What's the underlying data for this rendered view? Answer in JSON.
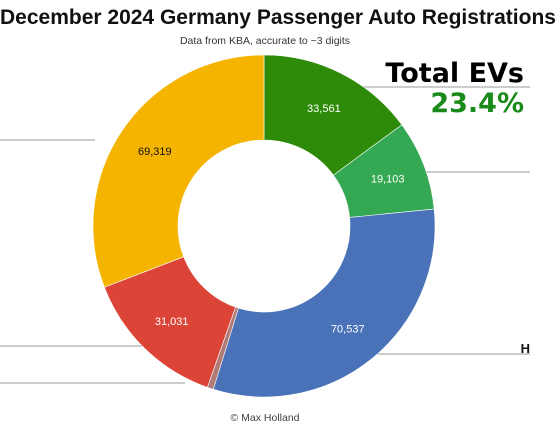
{
  "chart_data": {
    "type": "pie",
    "title": "December 2024 Germany Passenger Auto Registrations",
    "subtitle": "Data from KBA, accurate to ~3 digits",
    "donut": true,
    "slices": [
      {
        "value": 33561,
        "label": "33,561",
        "color": "#2e8b0a"
      },
      {
        "value": 19103,
        "label": "19,103",
        "color": "#34a853"
      },
      {
        "value": 70537,
        "label": "70,537",
        "color": "#4a72b8"
      },
      {
        "value": 1300,
        "label": "",
        "color": "#b07a77"
      },
      {
        "value": 31031,
        "label": "31,031",
        "color": "#dc4437"
      },
      {
        "value": 69319,
        "label": "69,319",
        "color": "#f4b400"
      }
    ]
  },
  "callout": {
    "label": "Total EVs",
    "value": "23.4%"
  },
  "edge_fragment": "H",
  "credit": "© Max Holland"
}
